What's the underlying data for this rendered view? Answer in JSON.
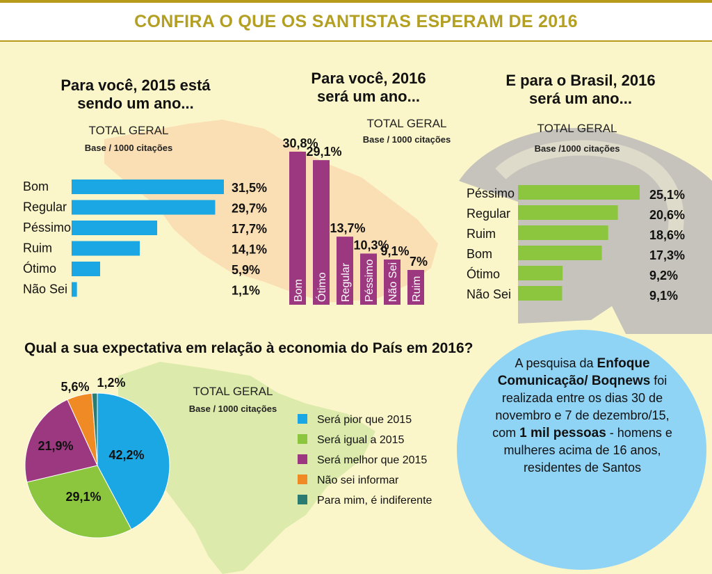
{
  "header": {
    "title": "CONFIRA O QUE OS SANTISTAS ESPERAM DE 2016"
  },
  "colors": {
    "blue": "#1aa7e4",
    "purple": "#9c3880",
    "green": "#8cc63f",
    "orange": "#f08a24",
    "teal": "#2a7c72",
    "gold": "#b3a023"
  },
  "chart_data": [
    {
      "type": "bar",
      "orientation": "horizontal",
      "title_line1": "Para você, 2015 está",
      "title_line2": "sendo um ano...",
      "total_label": "TOTAL GERAL",
      "base_label": "Base / 1000 citações",
      "categories": [
        "Bom",
        "Regular",
        "Péssimo",
        "Ruim",
        "Ótimo",
        "Não Sei"
      ],
      "values": [
        31.5,
        29.7,
        17.7,
        14.1,
        5.9,
        1.1
      ],
      "value_labels": [
        "31,5%",
        "29,7%",
        "17,7%",
        "14,1%",
        "5,9%",
        "1,1%"
      ]
    },
    {
      "type": "bar",
      "orientation": "vertical",
      "title_line1": "Para você, 2016",
      "title_line2": "será um ano...",
      "total_label": "TOTAL GERAL",
      "base_label": "Base / 1000 citações",
      "categories": [
        "Bom",
        "Ótimo",
        "Regular",
        "Péssimo",
        "Não Sei",
        "Ruim"
      ],
      "values": [
        30.8,
        29.1,
        13.7,
        10.3,
        9.1,
        7
      ],
      "value_labels": [
        "30,8%",
        "29,1%",
        "13,7%",
        "10,3%",
        "9,1%",
        "7%"
      ]
    },
    {
      "type": "bar",
      "orientation": "horizontal",
      "title_line1": "E para o Brasil, 2016",
      "title_line2": "será um ano...",
      "total_label": "TOTAL GERAL",
      "base_label": "Base /1000 citações",
      "categories": [
        "Péssimo",
        "Regular",
        "Ruim",
        "Bom",
        "Ótimo",
        "Não Sei"
      ],
      "values": [
        25.1,
        20.6,
        18.6,
        17.3,
        9.2,
        9.1
      ],
      "value_labels": [
        "25,1%",
        "20,6%",
        "18,6%",
        "17,3%",
        "9,2%",
        "9,1%"
      ]
    },
    {
      "type": "pie",
      "title": "Qual a sua expectativa em relação à economia do País em 2016?",
      "total_label": "TOTAL GERAL",
      "base_label": "Base / 1000 citações",
      "categories": [
        "Será pior que 2015",
        "Será igual a 2015",
        "Será melhor que 2015",
        "Não sei informar",
        "Para mim, é indiferente"
      ],
      "values": [
        42.2,
        29.1,
        21.9,
        5.6,
        1.2
      ],
      "value_labels": [
        "42,2%",
        "29,1%",
        "21,9%",
        "5,6%",
        "1,2%"
      ]
    }
  ],
  "note": {
    "p1": "A pesquisa da ",
    "b1": "Enfoque Comunicação/ Boqnews",
    "p2": " foi realizada entre os dias 30 de novembro e 7 de dezembro/15, com ",
    "b2": "1 mil pessoas",
    "p3": " - homens e mulheres acima de 16 anos, residentes de Santos"
  }
}
